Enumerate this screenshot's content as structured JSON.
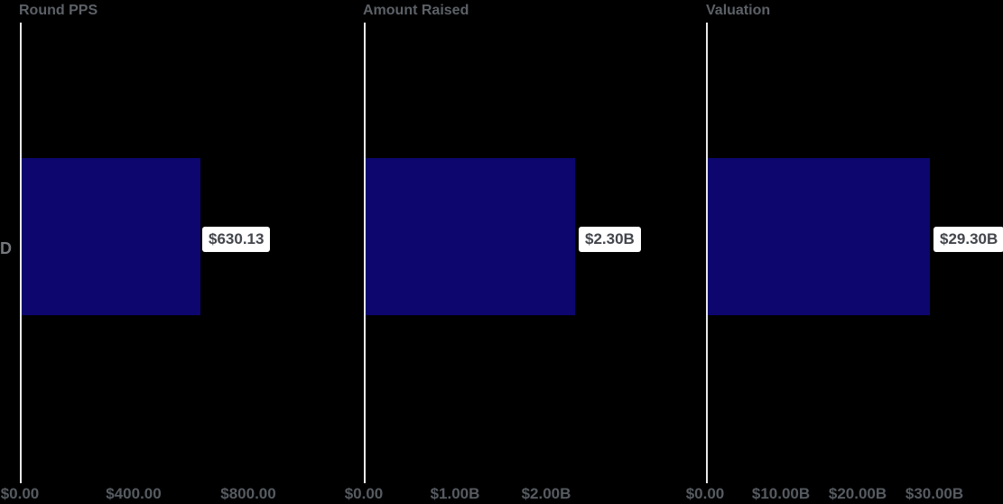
{
  "colors": {
    "background": "#000000",
    "bar": "#0c066e",
    "axis_line": "#e9e9e9",
    "title_text": "#5c6167",
    "tick_text": "#565b61",
    "category_text": "#75797f",
    "value_label_bg": "#ffffff",
    "value_label_text": "#43464c"
  },
  "chart_data": [
    {
      "type": "bar",
      "orientation": "horizontal",
      "title": "Round PPS",
      "categories": [
        "D"
      ],
      "values": [
        630.13
      ],
      "value_labels": [
        "$630.13"
      ],
      "x_ticks": [
        "$0.00",
        "$400.00",
        "$800.00"
      ],
      "x_tick_values": [
        0,
        400,
        800
      ],
      "xlim": [
        0,
        1070
      ],
      "grid": false,
      "legend": false,
      "bar_color": "#0c066e"
    },
    {
      "type": "bar",
      "orientation": "horizontal",
      "title": "Amount Raised",
      "categories": [
        "D"
      ],
      "values": [
        2.3
      ],
      "value_labels": [
        "$2.30B"
      ],
      "x_ticks": [
        "$0.00",
        "$1.00B",
        "$2.00B"
      ],
      "x_tick_values": [
        0,
        1.0,
        2.0
      ],
      "xlim": [
        0,
        3.3
      ],
      "grid": false,
      "legend": false,
      "bar_color": "#0c066e"
    },
    {
      "type": "bar",
      "orientation": "horizontal",
      "title": "Valuation",
      "categories": [
        "D"
      ],
      "values": [
        29.3
      ],
      "value_labels": [
        "$29.30B"
      ],
      "x_ticks": [
        "$0.00",
        "$10.00B",
        "$20.00B",
        "$30.00B"
      ],
      "x_tick_values": [
        0,
        10,
        20,
        30
      ],
      "xlim": [
        0,
        39
      ],
      "grid": false,
      "legend": false,
      "bar_color": "#0c066e"
    }
  ]
}
